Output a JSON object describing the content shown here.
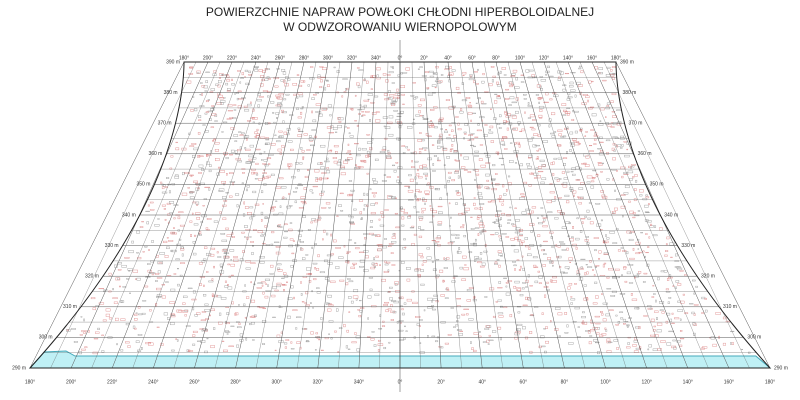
{
  "header": {
    "title_line1": "POWIERZCHNIE NAPRAW POWŁOKI  CHŁODNI HIPERBOLOIDALNEJ",
    "title_line2": "W ODWZOROWANIU WIERNOPOLOWYM"
  },
  "angles": [
    "180°",
    "200°",
    "220°",
    "240°",
    "260°",
    "280°",
    "300°",
    "320°",
    "340°",
    "0°",
    "20°",
    "40°",
    "60°",
    "80°",
    "100°",
    "120°",
    "140°",
    "160°",
    "180°"
  ],
  "heights": [
    "390 m",
    "380 m",
    "370 m",
    "360 m",
    "350 m",
    "340 m",
    "330 m",
    "320 m",
    "310 m",
    "300 m",
    "290 m"
  ]
}
